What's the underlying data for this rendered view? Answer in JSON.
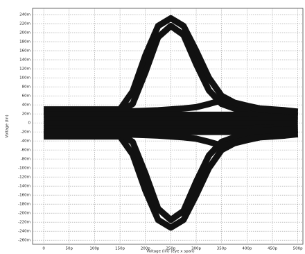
{
  "chart_data": {
    "type": "line",
    "x_label": "Voltage (lin) (eye x span)",
    "y_label": "Voltage (lin)",
    "x": [
      0,
      25,
      50,
      75,
      100,
      125,
      150,
      175,
      200,
      225,
      250,
      275,
      300,
      325,
      350,
      375,
      400,
      425,
      450,
      475,
      500
    ],
    "series": [
      {
        "color": "#111111",
        "values": [
          30,
          30,
          30,
          30,
          30,
          30,
          30,
          70,
          150,
          215,
          232,
          215,
          160,
          100,
          60,
          45,
          38,
          32,
          30,
          28,
          25
        ]
      },
      {
        "color": "#111111",
        "values": [
          25,
          25,
          25,
          25,
          25,
          25,
          25,
          42,
          112,
          190,
          215,
          195,
          130,
          72,
          42,
          32,
          26,
          23,
          21,
          19,
          16
        ]
      },
      {
        "color": "#111111",
        "values": [
          -30,
          -30,
          -30,
          -30,
          -30,
          -30,
          -30,
          -70,
          -150,
          -215,
          -232,
          -215,
          -160,
          -100,
          -60,
          -45,
          -38,
          -32,
          -30,
          -28,
          -25
        ]
      },
      {
        "color": "#111111",
        "values": [
          -25,
          -25,
          -25,
          -25,
          -25,
          -25,
          -25,
          -42,
          -112,
          -190,
          -215,
          -195,
          -130,
          -72,
          -42,
          -32,
          -26,
          -23,
          -21,
          -19,
          -16
        ]
      },
      {
        "color": "#111111",
        "values": [
          26,
          26,
          26,
          26,
          26,
          26,
          26,
          26,
          27,
          28,
          30,
          32,
          35,
          42,
          50,
          44,
          36,
          30,
          26,
          24,
          22
        ]
      },
      {
        "color": "#111111",
        "values": [
          -26,
          -26,
          -26,
          -26,
          -26,
          -26,
          -26,
          -26,
          -27,
          -28,
          -30,
          -32,
          -35,
          -42,
          -50,
          -44,
          -36,
          -30,
          -26,
          -24,
          -22
        ]
      },
      {
        "color": "#111111",
        "values": [
          18,
          18,
          18,
          18,
          18,
          18,
          18,
          18,
          18,
          18,
          18,
          18,
          18,
          18,
          18,
          18,
          18,
          16,
          14,
          13,
          12
        ]
      },
      {
        "color": "#111111",
        "values": [
          8,
          8,
          8,
          8,
          8,
          8,
          8,
          8,
          8,
          8,
          8,
          8,
          8,
          8,
          8,
          8,
          8,
          7,
          6,
          6,
          5
        ]
      },
      {
        "color": "#111111",
        "values": [
          -2,
          -2,
          -2,
          -2,
          -2,
          -2,
          -2,
          -2,
          -2,
          -2,
          -2,
          -2,
          -2,
          -2,
          -2,
          -2,
          -2,
          -2,
          -2,
          -2,
          -2
        ]
      },
      {
        "color": "#111111",
        "values": [
          -12,
          -12,
          -12,
          -12,
          -12,
          -12,
          -12,
          -12,
          -12,
          -12,
          -12,
          -12,
          -12,
          -12,
          -12,
          -12,
          -12,
          -11,
          -10,
          -9,
          -8
        ]
      },
      {
        "color": "#111111",
        "values": [
          -20,
          -20,
          -20,
          -20,
          -20,
          -20,
          -20,
          -20,
          -20,
          -20,
          -20,
          -20,
          -20,
          -20,
          -20,
          -20,
          -20,
          -18,
          -16,
          -15,
          -14
        ]
      }
    ],
    "xlim": [
      -22,
      510
    ],
    "ylim": [
      -269,
      254
    ],
    "xticks": [
      0,
      {
        "value": 50,
        "label": "50p"
      },
      {
        "value": 100,
        "label": "100p"
      },
      {
        "value": 150,
        "label": "150p"
      },
      {
        "value": 200,
        "label": "200p"
      },
      {
        "value": 250,
        "label": "250p"
      },
      {
        "value": 300,
        "label": "300p"
      },
      {
        "value": 350,
        "label": "350p"
      },
      {
        "value": 400,
        "label": "400p"
      },
      {
        "value": 450,
        "label": "450p"
      },
      {
        "value": 500,
        "label": "500p"
      }
    ],
    "yticks": [
      {
        "value": 240,
        "label": "240m"
      },
      {
        "value": 220,
        "label": "220m"
      },
      {
        "value": 200,
        "label": "200m"
      },
      {
        "value": 180,
        "label": "180m"
      },
      {
        "value": 160,
        "label": "160m"
      },
      {
        "value": 140,
        "label": "140m"
      },
      {
        "value": 120,
        "label": "120m"
      },
      {
        "value": 100,
        "label": "100m"
      },
      {
        "value": 80,
        "label": "80m"
      },
      {
        "value": 60,
        "label": "60m"
      },
      {
        "value": 40,
        "label": "40m"
      },
      {
        "value": 20,
        "label": "20m"
      },
      0,
      {
        "value": -20,
        "label": "-20m"
      },
      {
        "value": -40,
        "label": "-40m"
      },
      {
        "value": -60,
        "label": "-60m"
      },
      {
        "value": -80,
        "label": "-80m"
      },
      {
        "value": -100,
        "label": "-100m"
      },
      {
        "value": -120,
        "label": "-120m"
      },
      {
        "value": -140,
        "label": "-140m"
      },
      {
        "value": -160,
        "label": "-160m"
      },
      {
        "value": -180,
        "label": "-180m"
      },
      {
        "value": -200,
        "label": "-200m"
      },
      {
        "value": -220,
        "label": "-220m"
      },
      {
        "value": -240,
        "label": "-240m"
      },
      {
        "value": -260,
        "label": "-260m"
      }
    ],
    "grid": true
  }
}
